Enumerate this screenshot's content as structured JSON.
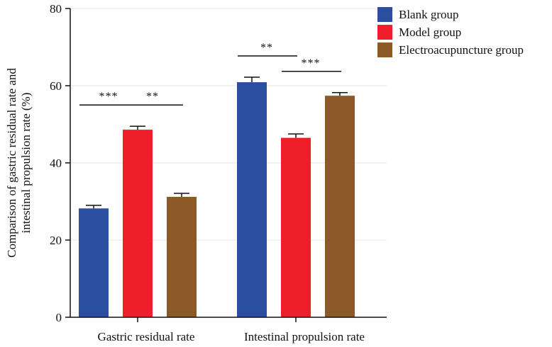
{
  "chart_data": {
    "type": "bar",
    "title": "",
    "xlabel": "",
    "ylabel_lines": [
      "Comparison of gastric residual rate and",
      "intestinal propulsion rate (%)"
    ],
    "ylim": [
      0,
      80
    ],
    "yticks": [
      0,
      20,
      40,
      60,
      80
    ],
    "grid": true,
    "legend_position": "top-right",
    "categories": [
      "Gastric residual rate",
      "Intestinal propulsion rate"
    ],
    "series": [
      {
        "name": "Blank group",
        "color": "#2a4ea0",
        "values": [
          28.2,
          60.9
        ],
        "errors": [
          0.8,
          1.3
        ]
      },
      {
        "name": "Model group",
        "color": "#ee1f2b",
        "values": [
          48.6,
          46.5
        ],
        "errors": [
          0.9,
          1.0
        ]
      },
      {
        "name": "Electroacupuncture group",
        "color": "#8c5a26",
        "values": [
          31.2,
          57.4
        ],
        "errors": [
          0.9,
          0.8
        ]
      }
    ],
    "significance": [
      {
        "category": 0,
        "from": 0,
        "to": 1,
        "label": "***"
      },
      {
        "category": 0,
        "from": 1,
        "to": 2,
        "label": "**"
      },
      {
        "category": 1,
        "from": 0,
        "to": 1,
        "label": "**"
      },
      {
        "category": 1,
        "from": 1,
        "to": 2,
        "label": "***"
      }
    ]
  }
}
